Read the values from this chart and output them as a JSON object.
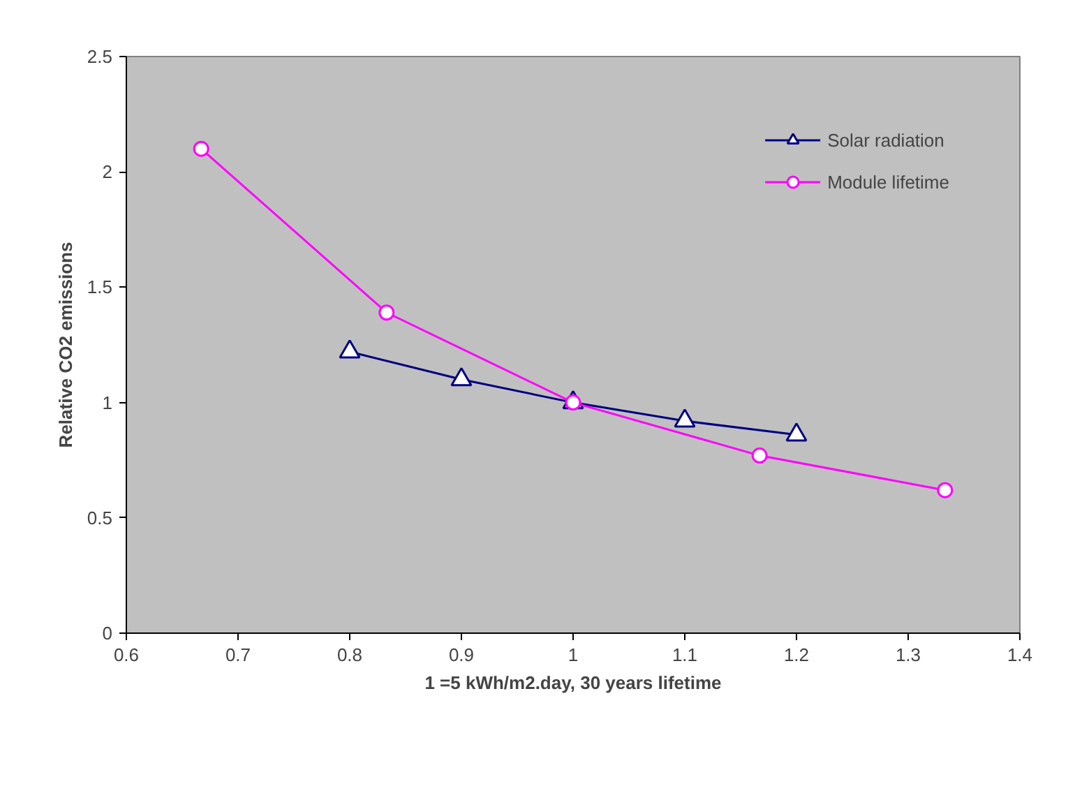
{
  "chart_data": {
    "type": "line",
    "xlabel": "1 =5 kWh/m2.day, 30 years lifetime",
    "ylabel": "Relative CO2 emissions",
    "xlim": [
      0.6,
      1.4
    ],
    "xticks": [
      0.6,
      0.7,
      0.8,
      0.9,
      1,
      1.1,
      1.2,
      1.3,
      1.4
    ],
    "ylim": [
      0,
      2.5
    ],
    "yticks": [
      0,
      0.5,
      1,
      1.5,
      2,
      2.5
    ],
    "grid": false,
    "legend": "top right",
    "series": [
      {
        "name": "Solar radiation",
        "color": "#000080",
        "marker": "triangle",
        "x": [
          0.8,
          0.9,
          1.0,
          1.1,
          1.2
        ],
        "values": [
          1.22,
          1.1,
          1.0,
          0.92,
          0.86
        ]
      },
      {
        "name": "Module lifetime",
        "color": "#ff00ff",
        "marker": "circle",
        "x": [
          0.667,
          0.833,
          1.0,
          1.167,
          1.333
        ],
        "values": [
          2.1,
          1.39,
          1.0,
          0.77,
          0.62
        ]
      }
    ]
  }
}
